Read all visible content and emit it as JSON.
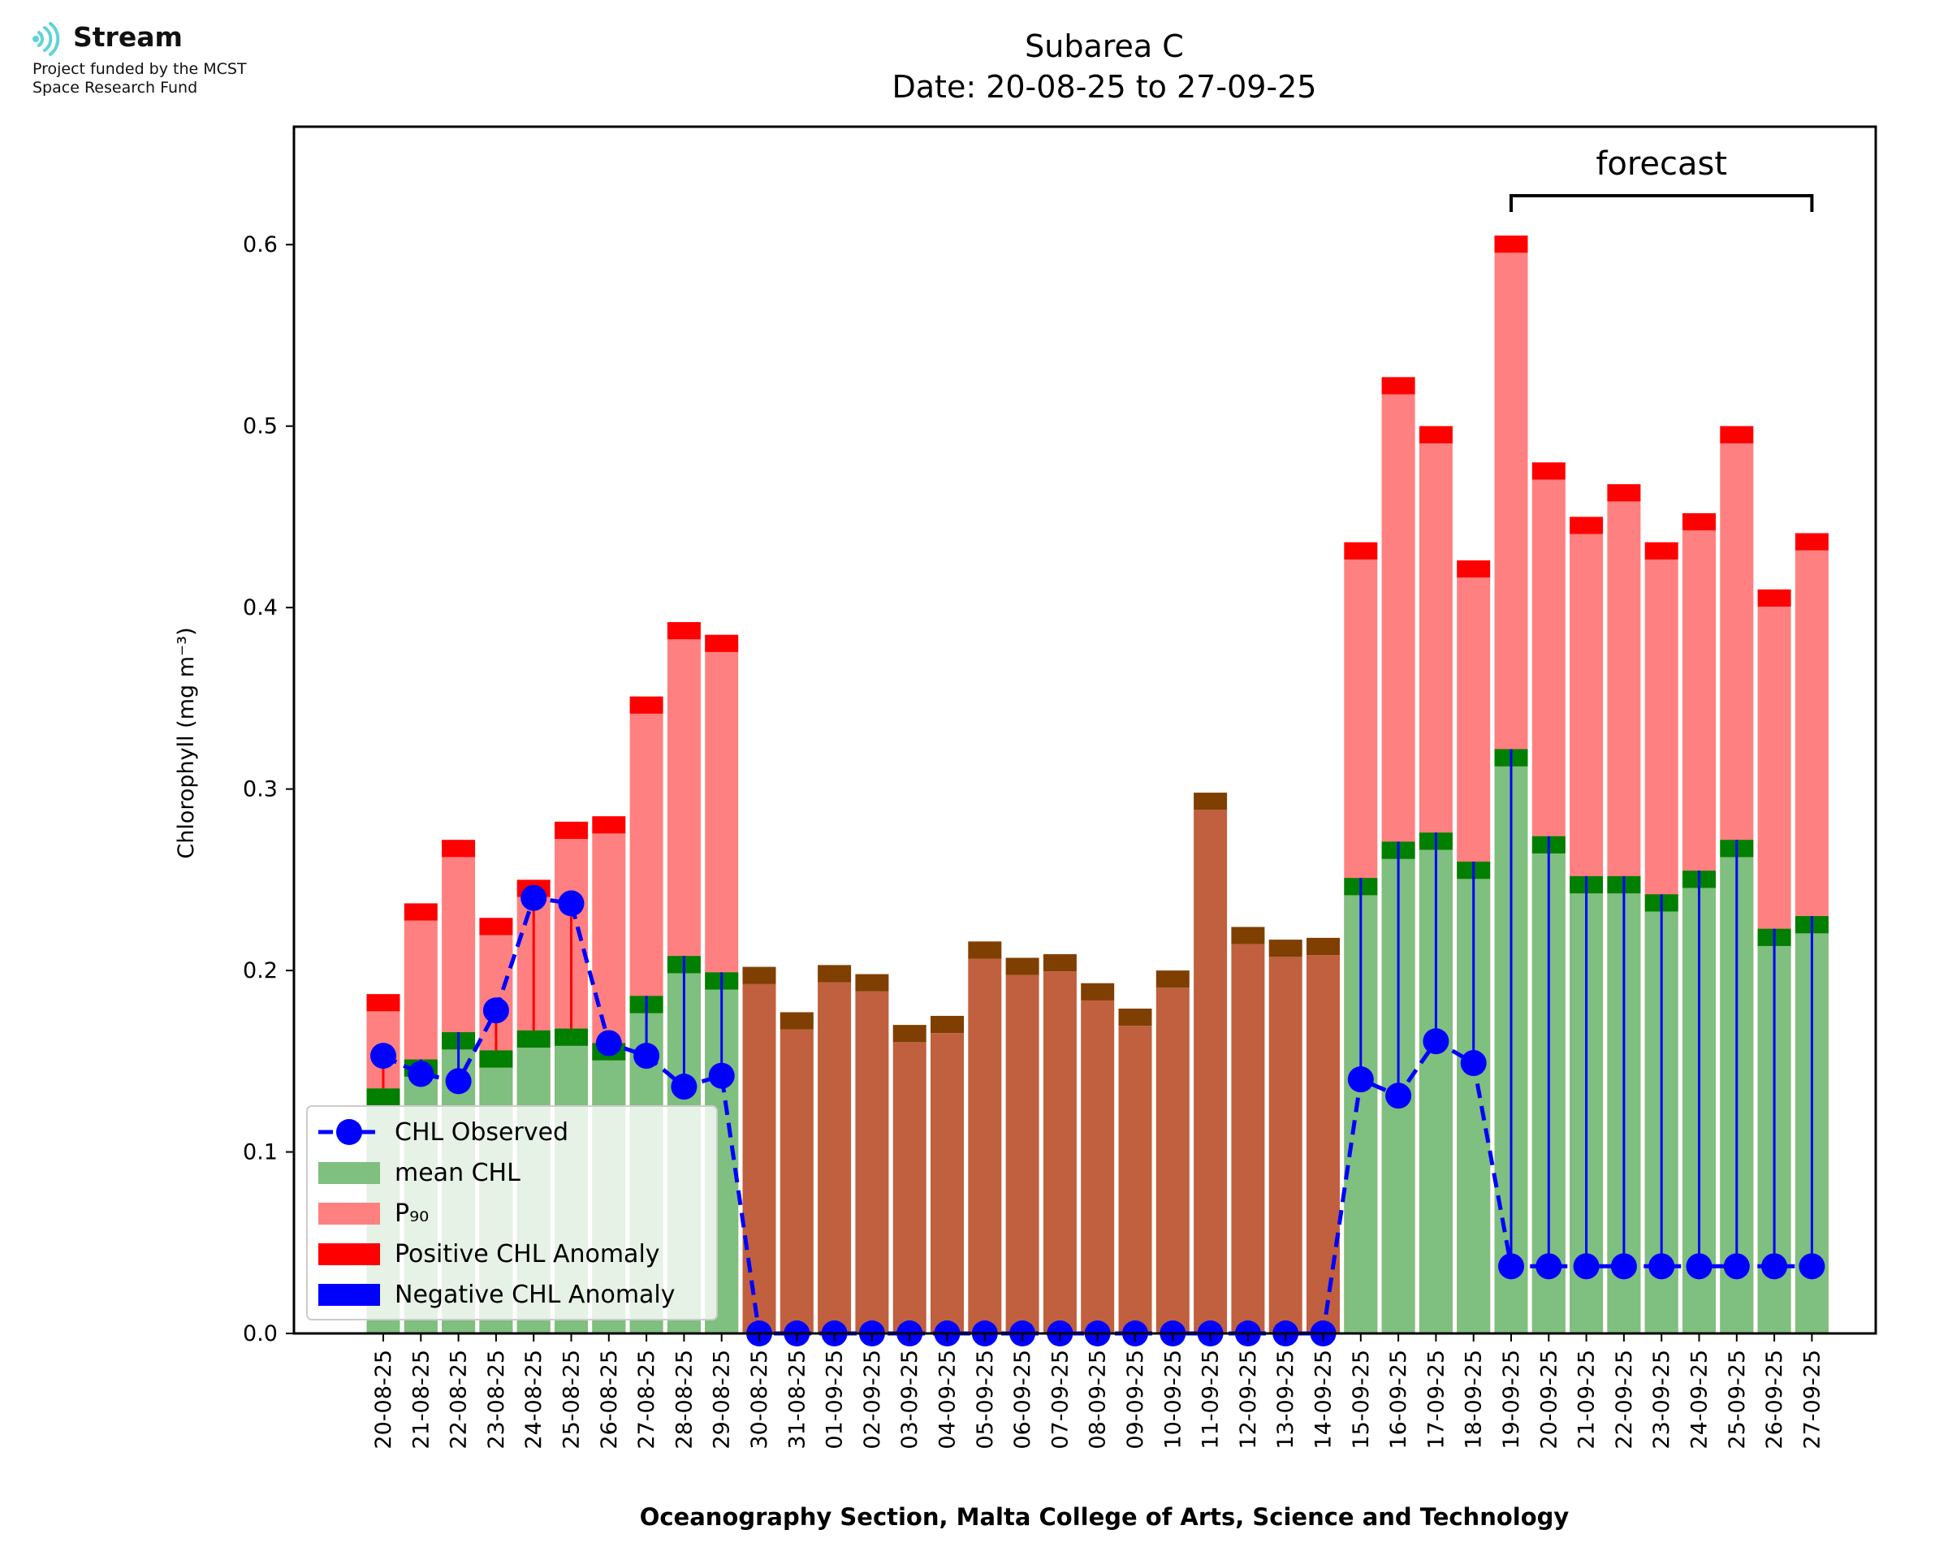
{
  "logo": {
    "name": "Stream",
    "line1": "Project funded by the MCST",
    "line2": "Space Research Fund",
    "icon": "wave-signal-icon",
    "color": "#5fd3d8"
  },
  "chart_data": {
    "type": "bar",
    "title": "Subarea C",
    "subtitle": "Date: 20-08-25 to 27-09-25",
    "ylabel": "Chlorophyll (mg m⁻³)",
    "xlabel": "Oceanography Section, Malta College of Arts, Science and Technology",
    "ylim": [
      0,
      0.665
    ],
    "yticks": [
      "0.0",
      "0.1",
      "0.2",
      "0.3",
      "0.4",
      "0.5",
      "0.6"
    ],
    "annotation": "forecast",
    "forecast_range": [
      "19-09-25",
      "27-09-25"
    ],
    "legend_placement": "lower-left",
    "colors": {
      "mean_valid": "#7fbf7f",
      "mean_missing": "#c0603f",
      "p90": "#ff8080",
      "positive_anomaly": "#ff0000",
      "mean_cap_valid": "#007f00",
      "mean_cap_missing": "#7f3f00",
      "observed": "#0000ff"
    },
    "categories": [
      "20-08-25",
      "21-08-25",
      "22-08-25",
      "23-08-25",
      "24-08-25",
      "25-08-25",
      "26-08-25",
      "27-08-25",
      "28-08-25",
      "29-08-25",
      "30-08-25",
      "31-08-25",
      "01-09-25",
      "02-09-25",
      "03-09-25",
      "04-09-25",
      "05-09-25",
      "06-09-25",
      "07-09-25",
      "08-09-25",
      "09-09-25",
      "10-09-25",
      "11-09-25",
      "12-09-25",
      "13-09-25",
      "14-09-25",
      "15-09-25",
      "16-09-25",
      "17-09-25",
      "18-09-25",
      "19-09-25",
      "20-09-25",
      "21-09-25",
      "22-09-25",
      "23-09-25",
      "24-09-25",
      "25-09-25",
      "26-09-25",
      "27-09-25"
    ],
    "series": [
      {
        "name": "CHL Observed",
        "values": [
          0.153,
          0.143,
          0.139,
          0.178,
          0.24,
          0.237,
          0.16,
          0.153,
          0.136,
          0.142,
          0,
          0,
          0,
          0,
          0,
          0,
          0,
          0,
          0,
          0,
          0,
          0,
          0,
          0,
          0,
          0,
          0.14,
          0.131,
          0.161,
          0.149,
          0.037,
          0.037,
          0.037,
          0.037,
          0.037,
          0.037,
          0.037,
          0.037,
          0.037
        ]
      },
      {
        "name": "mean CHL",
        "values": [
          0.135,
          0.151,
          0.166,
          0.156,
          0.167,
          0.168,
          0.16,
          0.186,
          0.208,
          0.199,
          0.202,
          0.177,
          0.203,
          0.198,
          0.17,
          0.175,
          0.216,
          0.207,
          0.209,
          0.193,
          0.179,
          0.2,
          0.298,
          0.224,
          0.217,
          0.218,
          0.251,
          0.271,
          0.276,
          0.26,
          0.322,
          0.274,
          0.252,
          0.252,
          0.242,
          0.255,
          0.272,
          0.223,
          0.23
        ]
      },
      {
        "name": "P₉₀",
        "values": [
          0.187,
          0.237,
          0.272,
          0.229,
          0.25,
          0.282,
          0.285,
          0.351,
          0.392,
          0.385,
          null,
          null,
          null,
          null,
          null,
          null,
          null,
          null,
          null,
          null,
          null,
          null,
          null,
          null,
          null,
          null,
          0.436,
          0.527,
          0.5,
          0.426,
          0.605,
          0.48,
          0.45,
          0.468,
          0.436,
          0.452,
          0.5,
          0.41,
          0.441
        ]
      }
    ],
    "legend": [
      "CHL Observed",
      "mean CHL",
      "P₉₀",
      "Positive CHL Anomaly",
      "Negative CHL Anomaly"
    ]
  }
}
